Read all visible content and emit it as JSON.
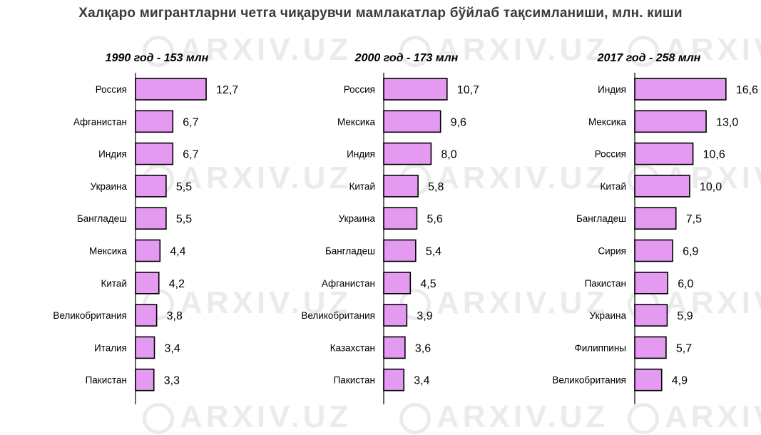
{
  "page": {
    "title": "Халқаро мигрантларни четга чиқарувчи мамлакатлар бўйлаб тақсимланиши, млн. киши",
    "watermark_text": "ARXIV.UZ"
  },
  "chart_data": [
    {
      "type": "bar",
      "orientation": "horizontal",
      "title": "1990 год - 153 млн",
      "categories": [
        "Россия",
        "Афганистан",
        "Индия",
        "Украина",
        "Бангладеш",
        "Мексика",
        "Китай",
        "Великобритания",
        "Италия",
        "Пакистан"
      ],
      "values": [
        12.7,
        6.7,
        6.7,
        5.5,
        5.5,
        4.4,
        4.2,
        3.8,
        3.4,
        3.3
      ],
      "value_labels": [
        "12,7",
        "6,7",
        "6,7",
        "5,5",
        "5,5",
        "4,4",
        "4,2",
        "3,8",
        "3,4",
        "3,3"
      ],
      "bar_color": "#e39af0",
      "grid": false,
      "legend": "none"
    },
    {
      "type": "bar",
      "orientation": "horizontal",
      "title": "2000 год - 173 млн",
      "categories": [
        "Россия",
        "Мексика",
        "Индия",
        "Китай",
        "Украина",
        "Бангладеш",
        "Афганистан",
        "Великобритания",
        "Казахстан",
        "Пакистан"
      ],
      "values": [
        10.7,
        9.6,
        8.0,
        5.8,
        5.6,
        5.4,
        4.5,
        3.9,
        3.6,
        3.4
      ],
      "value_labels": [
        "10,7",
        "9,6",
        "8,0",
        "5,8",
        "5,6",
        "5,4",
        "4,5",
        "3,9",
        "3,6",
        "3,4"
      ],
      "bar_color": "#e39af0",
      "grid": false,
      "legend": "none"
    },
    {
      "type": "bar",
      "orientation": "horizontal",
      "title": "2017 год - 258 млн",
      "categories": [
        "Индия",
        "Мексика",
        "Россия",
        "Китай",
        "Бангладеш",
        "Сирия",
        "Пакистан",
        "Украина",
        "Филиппины",
        "Великобритания"
      ],
      "values": [
        16.6,
        13.0,
        10.6,
        10.0,
        7.5,
        6.9,
        6.0,
        5.9,
        5.7,
        4.9
      ],
      "value_labels": [
        "16,6",
        "13,0",
        "10,6",
        "10,0",
        "7,5",
        "6,9",
        "6,0",
        "5,9",
        "5,7",
        "4,9"
      ],
      "bar_color": "#e39af0",
      "grid": false,
      "legend": "none"
    }
  ]
}
